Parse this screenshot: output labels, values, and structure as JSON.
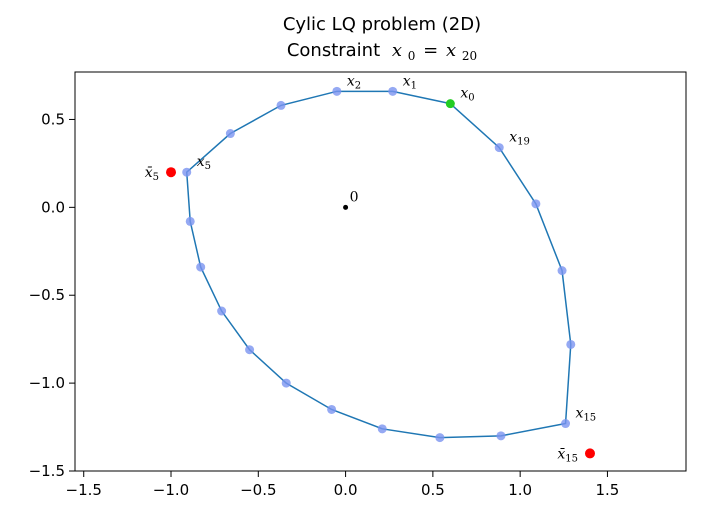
{
  "chart_data": {
    "type": "scatter",
    "title": "Cylic LQ problem (2D)",
    "subtitle": {
      "prefix": "Constraint",
      "math_lhs_sym": "x",
      "math_lhs_sub": "0",
      "eq": "=",
      "math_rhs_sym": "x",
      "math_rhs_sub": "20"
    },
    "xlabel": "",
    "ylabel": "",
    "xlim": [
      -1.55,
      1.95
    ],
    "ylim": [
      -1.5,
      0.77
    ],
    "x_ticks": [
      -1.5,
      -1.0,
      -0.5,
      0.0,
      0.5,
      1.0,
      1.5
    ],
    "x_tick_labels": [
      "−1.5",
      "−1.0",
      "−0.5",
      "0.0",
      "0.5",
      "1.0",
      "1.5"
    ],
    "y_ticks": [
      -1.5,
      -1.0,
      -0.5,
      0.0,
      0.5
    ],
    "y_tick_labels": [
      "−1.5",
      "−1.0",
      "−0.5",
      "0.0",
      "0.5"
    ],
    "grid": false,
    "colors": {
      "trajectory_line": "#1f77b4",
      "trajectory_points": "#7b93f0",
      "start_point": "#22cc22",
      "target_points": "#ff0000",
      "origin": "#000000"
    },
    "series": [
      {
        "kind": "trajectory",
        "x": [
          0.6,
          0.27,
          -0.05,
          -0.37,
          -0.66,
          -0.91,
          -0.89,
          -0.83,
          -0.71,
          -0.55,
          -0.34,
          -0.08,
          0.21,
          0.54,
          0.89,
          1.26,
          1.29,
          1.24,
          1.09,
          0.88,
          0.6
        ],
        "y": [
          0.59,
          0.66,
          0.66,
          0.58,
          0.42,
          0.2,
          -0.08,
          -0.34,
          -0.59,
          -0.81,
          -1.0,
          -1.15,
          -1.26,
          -1.31,
          -1.3,
          -1.23,
          -0.78,
          -0.36,
          0.02,
          0.34,
          0.59
        ]
      },
      {
        "kind": "targets",
        "x": [
          -1.0,
          1.4
        ],
        "y": [
          0.2,
          -1.4
        ]
      }
    ],
    "annotations": [
      {
        "sym": "x",
        "sub": "0",
        "x": 0.6,
        "y": 0.59,
        "anchor": "start",
        "role": "state"
      },
      {
        "sym": "x",
        "sub": "1",
        "x": 0.27,
        "y": 0.66,
        "anchor": "start",
        "role": "state"
      },
      {
        "sym": "x",
        "sub": "2",
        "x": -0.05,
        "y": 0.66,
        "anchor": "start",
        "role": "state"
      },
      {
        "sym": "x",
        "sub": "5",
        "x": -0.91,
        "y": 0.2,
        "anchor": "start",
        "role": "state"
      },
      {
        "sym": "x",
        "sub": "15",
        "x": 1.26,
        "y": -1.23,
        "anchor": "start",
        "role": "state"
      },
      {
        "sym": "x",
        "sub": "19",
        "x": 0.88,
        "y": 0.34,
        "anchor": "start",
        "role": "state"
      },
      {
        "sym": "x̄",
        "sub": "5",
        "x": -1.0,
        "y": 0.2,
        "anchor": "end",
        "role": "target"
      },
      {
        "sym": "x̄",
        "sub": "15",
        "x": 1.4,
        "y": -1.4,
        "anchor": "end",
        "role": "target"
      },
      {
        "sym": "0",
        "sub": "",
        "x": 0.0,
        "y": 0.0,
        "anchor": "start",
        "role": "origin"
      }
    ]
  }
}
